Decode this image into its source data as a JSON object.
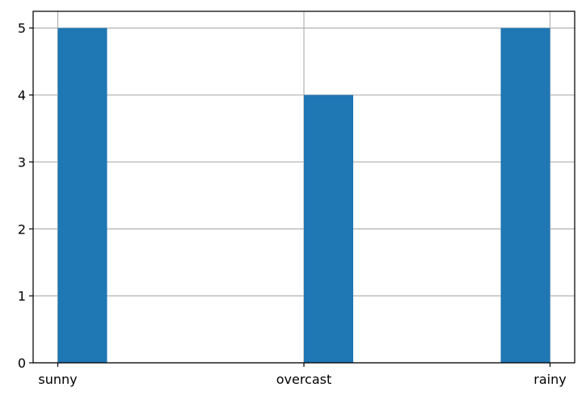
{
  "chart_data": {
    "type": "bar",
    "categories": [
      "sunny",
      "overcast",
      "rainy"
    ],
    "values": [
      5,
      4,
      5
    ],
    "title": "",
    "xlabel": "",
    "ylabel": "",
    "ylim": [
      0,
      5.25
    ],
    "yticks": [
      0,
      1,
      2,
      3,
      4,
      5
    ],
    "grid": true,
    "colors": {
      "bar": "#1f77b4",
      "grid": "#b0b0b0",
      "axis": "#000000"
    }
  }
}
